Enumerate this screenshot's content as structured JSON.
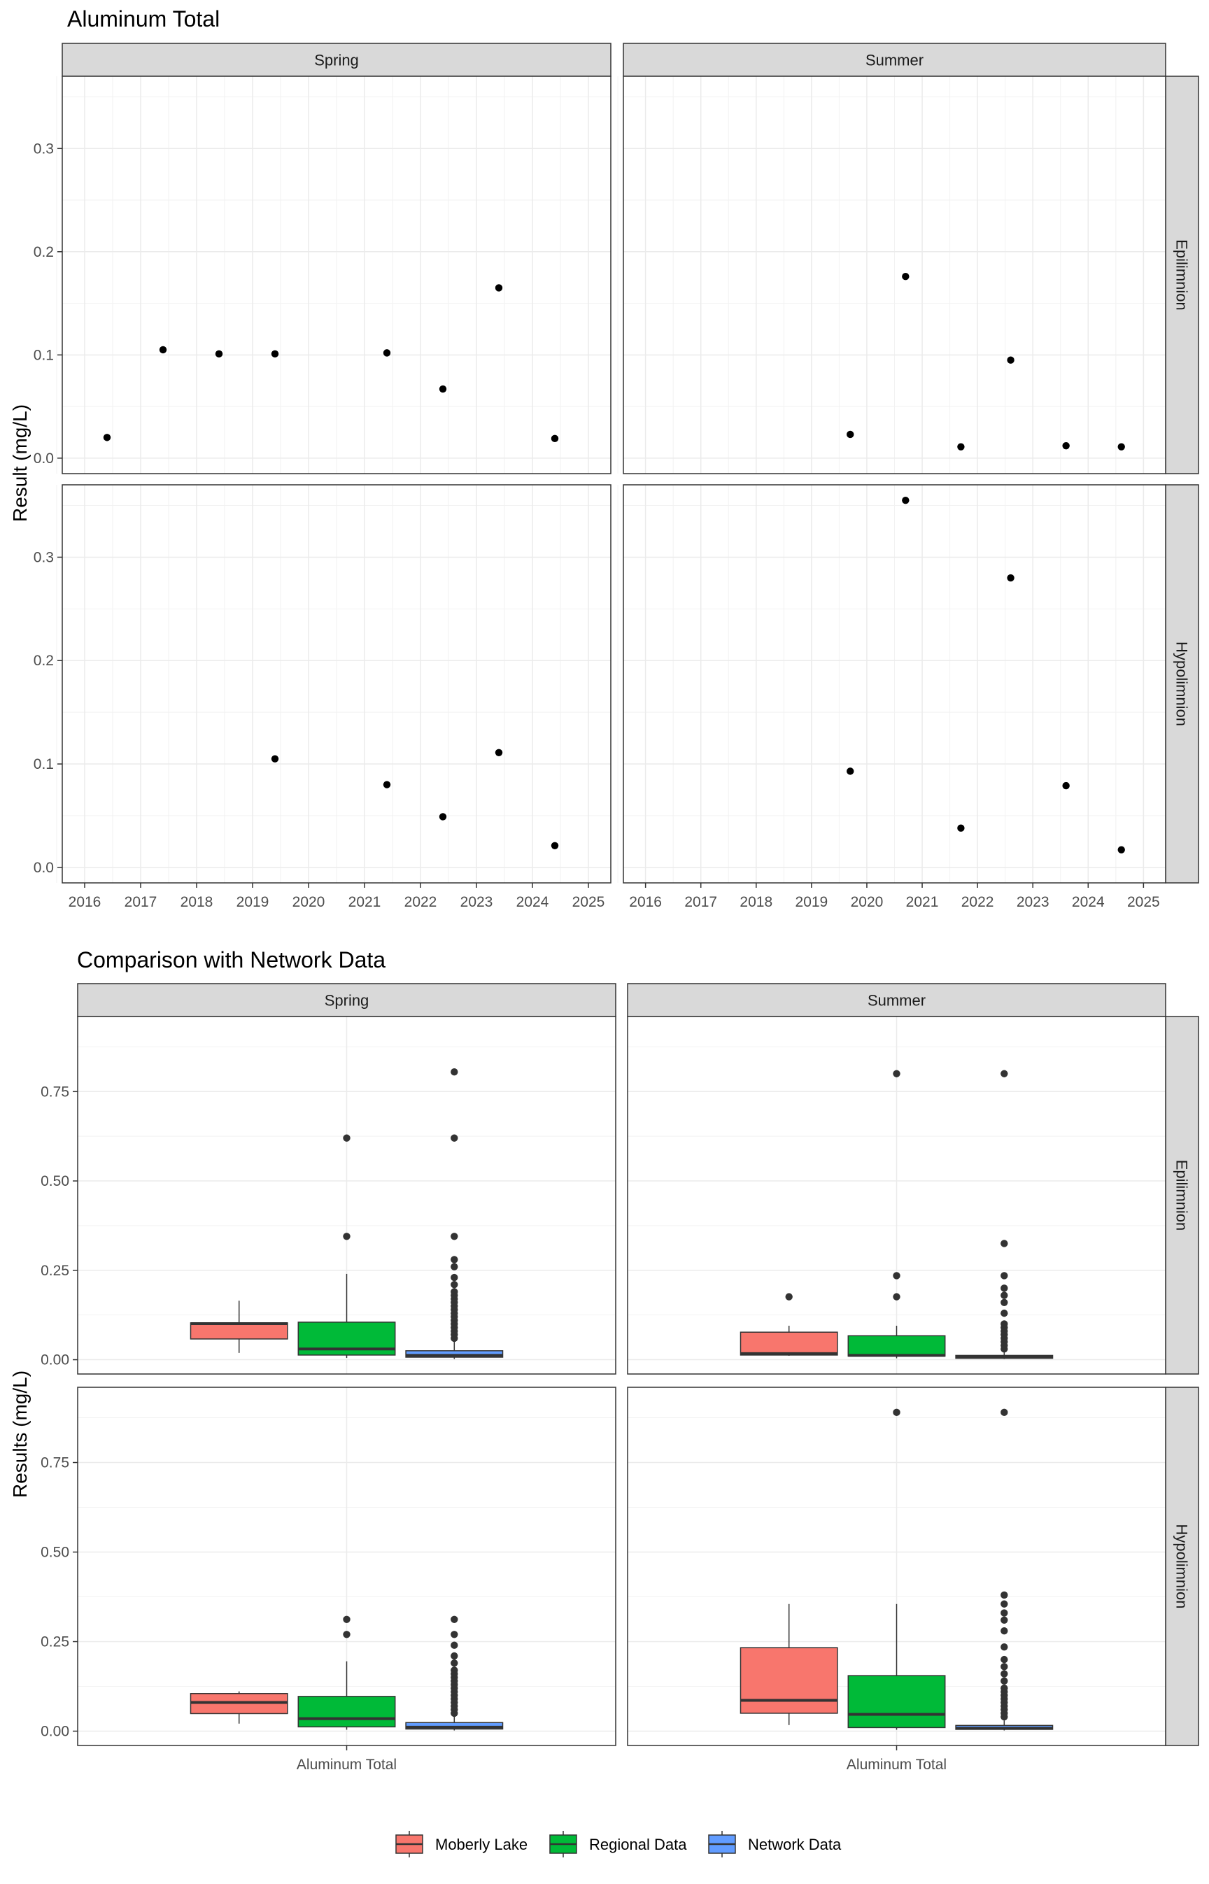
{
  "chart_data": [
    {
      "type": "scatter",
      "title": "Aluminum Total",
      "ylabel": "Result (mg/L)",
      "xlabel": "",
      "x_ticks": [
        "2016",
        "2017",
        "2018",
        "2019",
        "2020",
        "2021",
        "2022",
        "2023",
        "2024",
        "2025"
      ],
      "xlim": [
        2015.6,
        2025.4
      ],
      "y_ticks": [
        "0.0",
        "0.1",
        "0.2",
        "0.3"
      ],
      "ylim": [
        -0.015,
        0.37
      ],
      "grid": true,
      "col_facets": [
        "Spring",
        "Summer"
      ],
      "row_facets": [
        "Epilimnion",
        "Hypolimnion"
      ],
      "panels": [
        {
          "col": "Spring",
          "row": "Epilimnion",
          "points": [
            {
              "x": 2016.4,
              "y": 0.02
            },
            {
              "x": 2017.4,
              "y": 0.105
            },
            {
              "x": 2018.4,
              "y": 0.101
            },
            {
              "x": 2019.4,
              "y": 0.101
            },
            {
              "x": 2021.4,
              "y": 0.102
            },
            {
              "x": 2022.4,
              "y": 0.067
            },
            {
              "x": 2023.4,
              "y": 0.165
            },
            {
              "x": 2024.4,
              "y": 0.019
            }
          ]
        },
        {
          "col": "Summer",
          "row": "Epilimnion",
          "points": [
            {
              "x": 2019.7,
              "y": 0.023
            },
            {
              "x": 2020.7,
              "y": 0.176
            },
            {
              "x": 2021.7,
              "y": 0.011
            },
            {
              "x": 2022.6,
              "y": 0.095
            },
            {
              "x": 2023.6,
              "y": 0.012
            },
            {
              "x": 2024.6,
              "y": 0.011
            }
          ]
        },
        {
          "col": "Spring",
          "row": "Hypolimnion",
          "points": [
            {
              "x": 2019.4,
              "y": 0.105
            },
            {
              "x": 2021.4,
              "y": 0.08
            },
            {
              "x": 2022.4,
              "y": 0.049
            },
            {
              "x": 2023.4,
              "y": 0.111
            },
            {
              "x": 2024.4,
              "y": 0.021
            }
          ]
        },
        {
          "col": "Summer",
          "row": "Hypolimnion",
          "points": [
            {
              "x": 2019.7,
              "y": 0.093
            },
            {
              "x": 2020.7,
              "y": 0.355
            },
            {
              "x": 2021.7,
              "y": 0.038
            },
            {
              "x": 2022.6,
              "y": 0.28
            },
            {
              "x": 2023.6,
              "y": 0.079
            },
            {
              "x": 2024.6,
              "y": 0.017
            }
          ]
        }
      ]
    },
    {
      "type": "box",
      "title": "Comparison with Network Data",
      "ylabel": "Results (mg/L)",
      "x_category": "Aluminum Total",
      "y_ticks": [
        "0.00",
        "0.25",
        "0.50",
        "0.75"
      ],
      "ylim": [
        -0.04,
        0.96
      ],
      "grid": true,
      "legend_position": "bottom",
      "col_facets": [
        "Spring",
        "Summer"
      ],
      "row_facets": [
        "Epilimnion",
        "Hypolimnion"
      ],
      "series": [
        {
          "name": "Moberly Lake",
          "color": "#F8766D"
        },
        {
          "name": "Regional Data",
          "color": "#00BA38"
        },
        {
          "name": "Network Data",
          "color": "#619CFF"
        }
      ],
      "panels": [
        {
          "col": "Spring",
          "row": "Epilimnion",
          "boxes": [
            {
              "series": "Moberly Lake",
              "whisker_low": 0.019,
              "q1": 0.058,
              "median": 0.101,
              "q3": 0.103,
              "whisker_high": 0.165,
              "outliers": []
            },
            {
              "series": "Regional Data",
              "whisker_low": 0.005,
              "q1": 0.013,
              "median": 0.03,
              "q3": 0.105,
              "whisker_high": 0.24,
              "outliers": [
                0.345,
                0.62
              ]
            },
            {
              "series": "Network Data",
              "whisker_low": 0.002,
              "q1": 0.007,
              "median": 0.012,
              "q3": 0.025,
              "whisker_high": 0.05,
              "outliers": [
                0.06,
                0.07,
                0.08,
                0.09,
                0.1,
                0.11,
                0.12,
                0.13,
                0.14,
                0.15,
                0.16,
                0.17,
                0.18,
                0.19,
                0.21,
                0.23,
                0.26,
                0.28,
                0.345,
                0.62,
                0.805
              ]
            }
          ]
        },
        {
          "col": "Summer",
          "row": "Epilimnion",
          "boxes": [
            {
              "series": "Moberly Lake",
              "whisker_low": 0.011,
              "q1": 0.013,
              "median": 0.017,
              "q3": 0.077,
              "whisker_high": 0.095,
              "outliers": [
                0.176
              ]
            },
            {
              "series": "Regional Data",
              "whisker_low": 0.004,
              "q1": 0.01,
              "median": 0.012,
              "q3": 0.067,
              "whisker_high": 0.095,
              "outliers": [
                0.176,
                0.235,
                0.8
              ]
            },
            {
              "series": "Network Data",
              "whisker_low": 0.002,
              "q1": 0.004,
              "median": 0.007,
              "q3": 0.012,
              "whisker_high": 0.022,
              "outliers": [
                0.03,
                0.04,
                0.05,
                0.06,
                0.07,
                0.08,
                0.09,
                0.1,
                0.13,
                0.16,
                0.18,
                0.2,
                0.235,
                0.325,
                0.8
              ]
            }
          ]
        },
        {
          "col": "Spring",
          "row": "Hypolimnion",
          "boxes": [
            {
              "series": "Moberly Lake",
              "whisker_low": 0.021,
              "q1": 0.049,
              "median": 0.08,
              "q3": 0.105,
              "whisker_high": 0.111,
              "outliers": []
            },
            {
              "series": "Regional Data",
              "whisker_low": 0.004,
              "q1": 0.012,
              "median": 0.035,
              "q3": 0.097,
              "whisker_high": 0.195,
              "outliers": [
                0.27,
                0.312
              ]
            },
            {
              "series": "Network Data",
              "whisker_low": 0.002,
              "q1": 0.006,
              "median": 0.011,
              "q3": 0.024,
              "whisker_high": 0.045,
              "outliers": [
                0.05,
                0.06,
                0.07,
                0.08,
                0.09,
                0.1,
                0.11,
                0.12,
                0.13,
                0.14,
                0.15,
                0.16,
                0.17,
                0.19,
                0.21,
                0.24,
                0.27,
                0.312
              ]
            }
          ]
        },
        {
          "col": "Summer",
          "row": "Hypolimnion",
          "boxes": [
            {
              "series": "Moberly Lake",
              "whisker_low": 0.017,
              "q1": 0.05,
              "median": 0.086,
              "q3": 0.233,
              "whisker_high": 0.355,
              "outliers": []
            },
            {
              "series": "Regional Data",
              "whisker_low": 0.004,
              "q1": 0.01,
              "median": 0.047,
              "q3": 0.155,
              "whisker_high": 0.355,
              "outliers": [
                0.89
              ]
            },
            {
              "series": "Network Data",
              "whisker_low": 0.002,
              "q1": 0.005,
              "median": 0.008,
              "q3": 0.016,
              "whisker_high": 0.03,
              "outliers": [
                0.04,
                0.05,
                0.06,
                0.07,
                0.08,
                0.09,
                0.1,
                0.11,
                0.12,
                0.14,
                0.16,
                0.18,
                0.2,
                0.235,
                0.28,
                0.31,
                0.33,
                0.355,
                0.38,
                0.89
              ]
            }
          ]
        }
      ]
    }
  ]
}
